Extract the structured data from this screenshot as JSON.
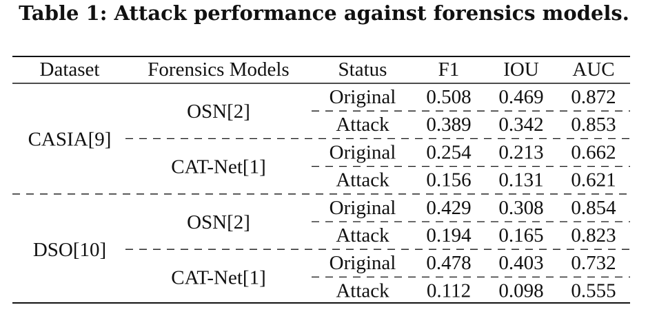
{
  "caption": "Table 1: Attack performance against forensics models.",
  "table": {
    "headers": [
      "Dataset",
      "Forensics Models",
      "Status",
      "F1",
      "IOU",
      "AUC"
    ],
    "datasets": [
      {
        "name": "CASIA[9]",
        "models": [
          {
            "name": "OSN[2]",
            "rows": [
              {
                "status": "Original",
                "f1": "0.508",
                "iou": "0.469",
                "auc": "0.872"
              },
              {
                "status": "Attack",
                "f1": "0.389",
                "iou": "0.342",
                "auc": "0.853"
              }
            ]
          },
          {
            "name": "CAT-Net[1]",
            "rows": [
              {
                "status": "Original",
                "f1": "0.254",
                "iou": "0.213",
                "auc": "0.662"
              },
              {
                "status": "Attack",
                "f1": "0.156",
                "iou": "0.131",
                "auc": "0.621"
              }
            ]
          }
        ]
      },
      {
        "name": "DSO[10]",
        "models": [
          {
            "name": "OSN[2]",
            "rows": [
              {
                "status": "Original",
                "f1": "0.429",
                "iou": "0.308",
                "auc": "0.854"
              },
              {
                "status": "Attack",
                "f1": "0.194",
                "iou": "0.165",
                "auc": "0.823"
              }
            ]
          },
          {
            "name": "CAT-Net[1]",
            "rows": [
              {
                "status": "Original",
                "f1": "0.478",
                "iou": "0.403",
                "auc": "0.732"
              },
              {
                "status": "Attack",
                "f1": "0.112",
                "iou": "0.098",
                "auc": "0.555"
              }
            ]
          }
        ]
      }
    ]
  }
}
